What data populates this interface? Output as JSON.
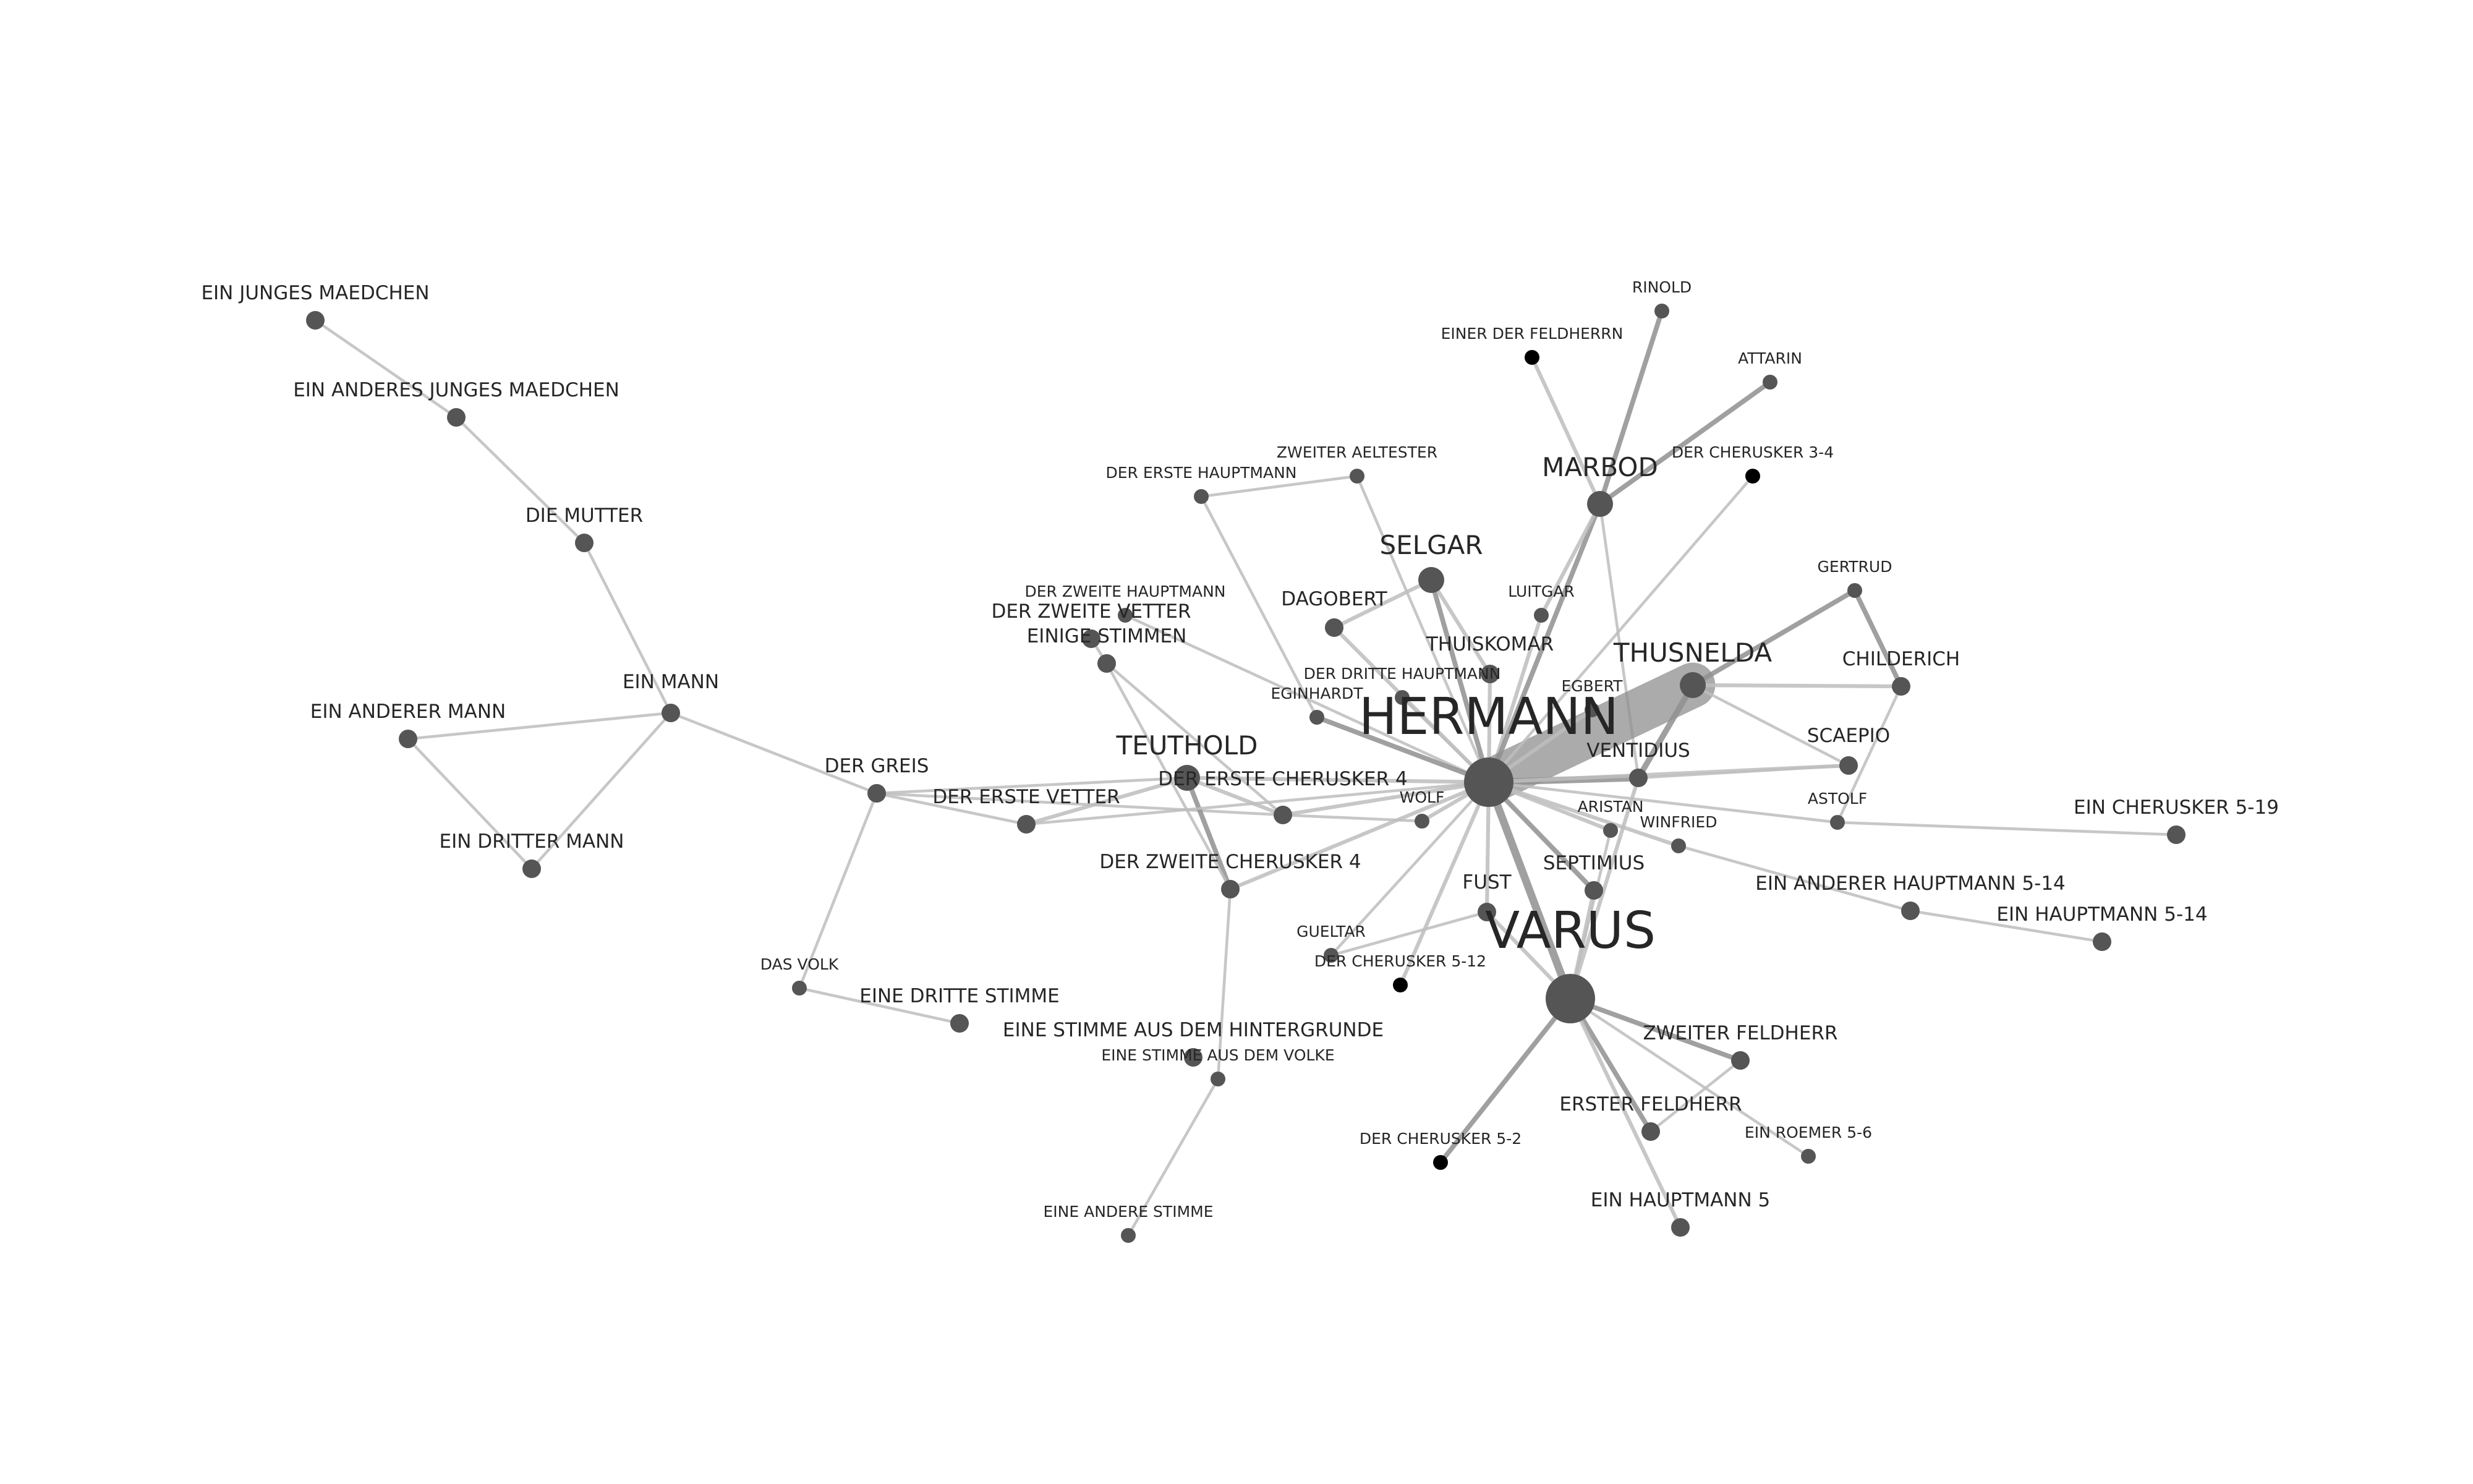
{
  "diagram": {
    "type": "character-network",
    "colors": {
      "node": "#555555",
      "node_minor": "#000000",
      "edge": "#bdbdbd",
      "edge_strong": "#8f8f8f",
      "label": "#262626",
      "background": "#ffffff"
    },
    "nodes": [
      {
        "id": "hermann",
        "label": "HERMANN",
        "size": "xl",
        "color": "#555555"
      },
      {
        "id": "varus",
        "label": "VARUS",
        "size": "xl",
        "color": "#555555"
      },
      {
        "id": "thusnelda",
        "label": "THUSNELDA",
        "size": "l",
        "color": "#555555"
      },
      {
        "id": "marbod",
        "label": "MARBOD",
        "size": "l",
        "color": "#555555"
      },
      {
        "id": "teuthold",
        "label": "TEUTHOLD",
        "size": "l",
        "color": "#555555"
      },
      {
        "id": "selgar",
        "label": "SELGAR",
        "size": "l",
        "color": "#555555"
      },
      {
        "id": "ein_mann",
        "label": "EIN MANN",
        "size": "m",
        "color": "#555555"
      },
      {
        "id": "der_erste_cherusker_4",
        "label": "DER ERSTE CHERUSKER 4",
        "size": "m",
        "color": "#555555"
      },
      {
        "id": "fust",
        "label": "FUST",
        "size": "m",
        "color": "#555555"
      },
      {
        "id": "dagobert",
        "label": "DAGOBERT",
        "size": "m",
        "color": "#555555"
      },
      {
        "id": "thuiskomar",
        "label": "THUISKOMAR",
        "size": "m",
        "color": "#555555"
      },
      {
        "id": "childerich",
        "label": "CHILDERICH",
        "size": "m",
        "color": "#555555"
      },
      {
        "id": "scaepio",
        "label": "SCAEPIO",
        "size": "m",
        "color": "#555555"
      },
      {
        "id": "ventidius",
        "label": "VENTIDIUS",
        "size": "m",
        "color": "#555555"
      },
      {
        "id": "septimius",
        "label": "SEPTIMIUS",
        "size": "m",
        "color": "#555555"
      },
      {
        "id": "der_erste_vetter",
        "label": "DER ERSTE VETTER",
        "size": "m",
        "color": "#555555"
      },
      {
        "id": "der_zweite_cherusker_4",
        "label": "DER ZWEITE CHERUSKER 4",
        "size": "m",
        "color": "#555555"
      },
      {
        "id": "der_greis",
        "label": "DER GREIS",
        "size": "m",
        "color": "#555555"
      },
      {
        "id": "ein_junges_maedchen",
        "label": "EIN JUNGES MAEDCHEN",
        "size": "m",
        "color": "#555555"
      },
      {
        "id": "ein_anderes_junges_maedchen",
        "label": "EIN ANDERES JUNGES MAEDCHEN",
        "size": "m",
        "color": "#555555"
      },
      {
        "id": "die_mutter",
        "label": "DIE MUTTER",
        "size": "m",
        "color": "#555555"
      },
      {
        "id": "ein_anderer_mann",
        "label": "EIN ANDERER MANN",
        "size": "m",
        "color": "#555555"
      },
      {
        "id": "ein_dritter_mann",
        "label": "EIN DRITTER MANN",
        "size": "m",
        "color": "#555555"
      },
      {
        "id": "der_zweite_vetter",
        "label": "DER ZWEITE VETTER",
        "size": "m",
        "color": "#555555"
      },
      {
        "id": "einige_stimmen",
        "label": "EINIGE STIMMEN",
        "size": "m",
        "color": "#555555"
      },
      {
        "id": "eine_dritte_stimme",
        "label": "EINE DRITTE STIMME",
        "size": "m",
        "color": "#555555"
      },
      {
        "id": "eine_stimme_aus_dem_hintergrunde",
        "label": "EINE STIMME AUS DEM HINTERGRUNDE",
        "size": "m",
        "color": "#555555"
      },
      {
        "id": "gertrud",
        "label": "GERTRUD",
        "size": "s",
        "color": "#555555"
      },
      {
        "id": "astolf",
        "label": "ASTOLF",
        "size": "s",
        "color": "#555555"
      },
      {
        "id": "aristan",
        "label": "ARISTAN",
        "size": "s",
        "color": "#555555"
      },
      {
        "id": "winfried",
        "label": "WINFRIED",
        "size": "s",
        "color": "#555555"
      },
      {
        "id": "wolf",
        "label": "WOLF",
        "size": "s",
        "color": "#555555"
      },
      {
        "id": "egbert",
        "label": "EGBERT",
        "size": "s",
        "color": "#555555"
      },
      {
        "id": "luitgar",
        "label": "LUITGAR",
        "size": "s",
        "color": "#555555"
      },
      {
        "id": "eginhardt",
        "label": "EGINHARDT",
        "size": "s",
        "color": "#555555"
      },
      {
        "id": "der_dritte_hauptmann",
        "label": "DER DRITTE HAUPTMANN",
        "size": "s",
        "color": "#555555"
      },
      {
        "id": "der_erste_hauptmann",
        "label": "DER ERSTE HAUPTMANN",
        "size": "s",
        "color": "#555555"
      },
      {
        "id": "zweiter_aeltester",
        "label": "ZWEITER AELTESTER",
        "size": "s",
        "color": "#555555"
      },
      {
        "id": "der_zweite_hauptmann",
        "label": "DER ZWEITE HAUPTMANN",
        "size": "s",
        "color": "#555555"
      },
      {
        "id": "rinold",
        "label": "RINOLD",
        "size": "s",
        "color": "#555555"
      },
      {
        "id": "attarin",
        "label": "ATTARIN",
        "size": "s",
        "color": "#555555"
      },
      {
        "id": "einer_der_feldherrn",
        "label": "EINER DER FELDHERRN",
        "size": "s",
        "color": "#000000"
      },
      {
        "id": "der_cherusker_3_4",
        "label": "DER CHERUSKER 3-4",
        "size": "s",
        "color": "#000000"
      },
      {
        "id": "gueltar",
        "label": "GUELTAR",
        "size": "s",
        "color": "#555555"
      },
      {
        "id": "der_cherusker_5_12",
        "label": "DER CHERUSKER 5-12",
        "size": "s",
        "color": "#000000"
      },
      {
        "id": "das_volk",
        "label": "DAS VOLK",
        "size": "s",
        "color": "#555555"
      },
      {
        "id": "eine_stimme_aus_dem_volke",
        "label": "EINE STIMME AUS DEM VOLKE",
        "size": "s",
        "color": "#555555"
      },
      {
        "id": "eine_andere_stimme",
        "label": "EINE ANDERE STIMME",
        "size": "s",
        "color": "#555555"
      },
      {
        "id": "zweiter_feldherr",
        "label": "ZWEITER FELDHERR",
        "size": "m",
        "color": "#555555"
      },
      {
        "id": "erster_feldherr",
        "label": "ERSTER FELDHERR",
        "size": "m",
        "color": "#555555"
      },
      {
        "id": "ein_roemer_5_6",
        "label": "EIN ROEMER 5-6",
        "size": "s",
        "color": "#555555"
      },
      {
        "id": "ein_hauptmann_5",
        "label": "EIN HAUPTMANN 5",
        "size": "m",
        "color": "#555555"
      },
      {
        "id": "der_cherusker_5_2",
        "label": "DER CHERUSKER 5-2",
        "size": "s",
        "color": "#000000"
      },
      {
        "id": "ein_cherusker_5_19",
        "label": "EIN CHERUSKER 5-19",
        "size": "m",
        "color": "#555555"
      },
      {
        "id": "ein_anderer_hauptmann_5_14",
        "label": "EIN ANDERER HAUPTMANN 5-14",
        "size": "m",
        "color": "#555555"
      },
      {
        "id": "ein_hauptmann_5_14",
        "label": "EIN HAUPTMANN 5-14",
        "size": "m",
        "color": "#555555"
      }
    ],
    "edges": [
      {
        "from": "ein_junges_maedchen",
        "to": "ein_anderes_junges_maedchen",
        "weight": 1
      },
      {
        "from": "ein_anderes_junges_maedchen",
        "to": "die_mutter",
        "weight": 1
      },
      {
        "from": "die_mutter",
        "to": "ein_mann",
        "weight": 1
      },
      {
        "from": "ein_mann",
        "to": "ein_anderer_mann",
        "weight": 1
      },
      {
        "from": "ein_mann",
        "to": "ein_dritter_mann",
        "weight": 1
      },
      {
        "from": "ein_anderer_mann",
        "to": "ein_dritter_mann",
        "weight": 1
      },
      {
        "from": "ein_mann",
        "to": "der_greis",
        "weight": 1
      },
      {
        "from": "der_greis",
        "to": "das_volk",
        "weight": 1
      },
      {
        "from": "das_volk",
        "to": "eine_dritte_stimme",
        "weight": 1
      },
      {
        "from": "der_greis",
        "to": "der_erste_vetter",
        "weight": 1
      },
      {
        "from": "der_greis",
        "to": "teuthold",
        "weight": 1
      },
      {
        "from": "der_greis",
        "to": "der_erste_cherusker_4",
        "weight": 1
      },
      {
        "from": "der_erste_vetter",
        "to": "teuthold",
        "weight": 2
      },
      {
        "from": "teuthold",
        "to": "der_erste_cherusker_4",
        "weight": 2
      },
      {
        "from": "teuthold",
        "to": "der_zweite_cherusker_4",
        "weight": 3
      },
      {
        "from": "teuthold",
        "to": "hermann",
        "weight": 2
      },
      {
        "from": "der_erste_vetter",
        "to": "hermann",
        "weight": 1
      },
      {
        "from": "einige_stimmen",
        "to": "der_zweite_cherusker_4",
        "weight": 1
      },
      {
        "from": "einige_stimmen",
        "to": "der_erste_cherusker_4",
        "weight": 1
      },
      {
        "from": "der_zweite_vetter",
        "to": "einige_stimmen",
        "weight": 1
      },
      {
        "from": "der_zweite_hauptmann",
        "to": "hermann",
        "weight": 1
      },
      {
        "from": "der_erste_cherusker_4",
        "to": "hermann",
        "weight": 2
      },
      {
        "from": "der_zweite_cherusker_4",
        "to": "hermann",
        "weight": 2
      },
      {
        "from": "der_zweite_cherusker_4",
        "to": "eine_stimme_aus_dem_volke",
        "weight": 1
      },
      {
        "from": "eine_stimme_aus_dem_volke",
        "to": "eine_andere_stimme",
        "weight": 1
      },
      {
        "from": "der_erste_hauptmann",
        "to": "zweiter_aeltester",
        "weight": 1
      },
      {
        "from": "der_erste_hauptmann",
        "to": "eginhardt",
        "weight": 1
      },
      {
        "from": "zweiter_aeltester",
        "to": "hermann",
        "weight": 1
      },
      {
        "from": "eginhardt",
        "to": "hermann",
        "weight": 3
      },
      {
        "from": "der_dritte_hauptmann",
        "to": "hermann",
        "weight": 1
      },
      {
        "from": "dagobert",
        "to": "selgar",
        "weight": 2
      },
      {
        "from": "dagobert",
        "to": "hermann",
        "weight": 2
      },
      {
        "from": "selgar",
        "to": "hermann",
        "weight": 3
      },
      {
        "from": "selgar",
        "to": "thuiskomar",
        "weight": 2
      },
      {
        "from": "thuiskomar",
        "to": "hermann",
        "weight": 2
      },
      {
        "from": "wolf",
        "to": "hermann",
        "weight": 2
      },
      {
        "from": "wolf",
        "to": "der_erste_cherusker_4",
        "weight": 1
      },
      {
        "from": "luitgar",
        "to": "hermann",
        "weight": 2
      },
      {
        "from": "marbod",
        "to": "hermann",
        "weight": 3
      },
      {
        "from": "marbod",
        "to": "rinold",
        "weight": 3
      },
      {
        "from": "marbod",
        "to": "attarin",
        "weight": 3
      },
      {
        "from": "marbod",
        "to": "einer_der_feldherrn",
        "weight": 2
      },
      {
        "from": "marbod",
        "to": "luitgar",
        "weight": 2
      },
      {
        "from": "marbod",
        "to": "ventidius",
        "weight": 1
      },
      {
        "from": "hermann",
        "to": "thusnelda",
        "weight": 14
      },
      {
        "from": "hermann",
        "to": "ventidius",
        "weight": 5
      },
      {
        "from": "hermann",
        "to": "varus",
        "weight": 6
      },
      {
        "from": "hermann",
        "to": "scaepio",
        "weight": 2
      },
      {
        "from": "hermann",
        "to": "aristan",
        "weight": 2
      },
      {
        "from": "hermann",
        "to": "septimius",
        "weight": 3
      },
      {
        "from": "hermann",
        "to": "winfried",
        "weight": 2
      },
      {
        "from": "hermann",
        "to": "astolf",
        "weight": 1
      },
      {
        "from": "hermann",
        "to": "fust",
        "weight": 2
      },
      {
        "from": "hermann",
        "to": "gueltar",
        "weight": 1
      },
      {
        "from": "hermann",
        "to": "der_cherusker_5_12",
        "weight": 2
      },
      {
        "from": "hermann",
        "to": "der_cherusker_3_4",
        "weight": 1
      },
      {
        "from": "hermann",
        "to": "egbert",
        "weight": 2
      },
      {
        "from": "thusnelda",
        "to": "ventidius",
        "weight": 4
      },
      {
        "from": "thusnelda",
        "to": "gertrud",
        "weight": 3
      },
      {
        "from": "thusnelda",
        "to": "childerich",
        "weight": 2
      },
      {
        "from": "thusnelda",
        "to": "scaepio",
        "weight": 1
      },
      {
        "from": "childerich",
        "to": "gertrud",
        "weight": 3
      },
      {
        "from": "childerich",
        "to": "astolf",
        "weight": 1
      },
      {
        "from": "ventidius",
        "to": "scaepio",
        "weight": 1
      },
      {
        "from": "ein_cherusker_5_19",
        "to": "astolf",
        "weight": 1
      },
      {
        "from": "winfried",
        "to": "ein_anderer_hauptmann_5_14",
        "weight": 1
      },
      {
        "from": "ein_anderer_hauptmann_5_14",
        "to": "ein_hauptmann_5_14",
        "weight": 1
      },
      {
        "from": "aristan",
        "to": "varus",
        "weight": 1
      },
      {
        "from": "septimius",
        "to": "varus",
        "weight": 2
      },
      {
        "from": "fust",
        "to": "varus",
        "weight": 2
      },
      {
        "from": "fust",
        "to": "gueltar",
        "weight": 1
      },
      {
        "from": "varus",
        "to": "zweiter_feldherr",
        "weight": 3
      },
      {
        "from": "varus",
        "to": "erster_feldherr",
        "weight": 3
      },
      {
        "from": "varus",
        "to": "ein_roemer_5_6",
        "weight": 1
      },
      {
        "from": "varus",
        "to": "ein_hauptmann_5",
        "weight": 2
      },
      {
        "from": "varus",
        "to": "der_cherusker_5_2",
        "weight": 3
      },
      {
        "from": "erster_feldherr",
        "to": "zweiter_feldherr",
        "weight": 1
      },
      {
        "from": "ventidius",
        "to": "varus",
        "weight": 2
      }
    ]
  }
}
